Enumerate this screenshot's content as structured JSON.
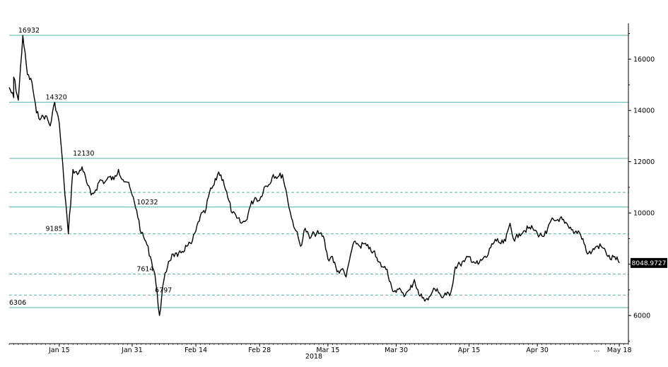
{
  "chart_data": {
    "type": "line",
    "year_label": "2018",
    "x_tick_labels": [
      "Jan 15",
      "Jan 31",
      "Feb 14",
      "Feb 28",
      "Mar 15",
      "Mar 30",
      "Apr 15",
      "Apr 30",
      "May 18"
    ],
    "x_tick_dates": [
      "2018-01-15",
      "2018-01-31",
      "2018-02-14",
      "2018-02-28",
      "2018-03-15",
      "2018-03-30",
      "2018-04-15",
      "2018-04-30",
      "2018-05-18"
    ],
    "x_ellipsis": "...",
    "y_ticks": [
      6000,
      8000,
      10000,
      12000,
      14000,
      16000
    ],
    "y_tick_labels": [
      "6000",
      "8000",
      "10000",
      "12000",
      "14000",
      "16000"
    ],
    "ylim": [
      4900,
      17400
    ],
    "xlim": [
      "2018-01-04",
      "2018-05-20"
    ],
    "last_value_label": "8048.9727",
    "colors": {
      "line": "#000000",
      "levels": "#4fb3a6",
      "axis": "#000000"
    },
    "solid_levels": [
      16932,
      14320,
      12130,
      10232,
      6306
    ],
    "dashed_levels": [
      10800,
      9185,
      7614,
      6797
    ],
    "level_labels": [
      {
        "text": "16932",
        "date": "2018-01-06",
        "value": 16932,
        "anchor": "start"
      },
      {
        "text": "14320",
        "date": "2018-01-12",
        "value": 14320,
        "anchor": "start"
      },
      {
        "text": "12130",
        "date": "2018-01-18",
        "value": 12130,
        "anchor": "start"
      },
      {
        "text": "10232",
        "date": "2018-02-01",
        "value": 10232,
        "anchor": "start"
      },
      {
        "text": "9185",
        "date": "2018-01-12",
        "value": 9185,
        "anchor": "start"
      },
      {
        "text": "7614",
        "date": "2018-02-01",
        "value": 7614,
        "anchor": "start"
      },
      {
        "text": "6797",
        "date": "2018-02-05",
        "value": 6797,
        "anchor": "start"
      },
      {
        "text": "6306",
        "date": "2018-01-04",
        "value": 6306,
        "anchor": "start"
      }
    ],
    "series": [
      {
        "points": [
          [
            "2018-01-04",
            14900
          ],
          [
            "2018-01-05",
            14500
          ],
          [
            "2018-01-05",
            15300
          ],
          [
            "2018-01-06",
            14400
          ],
          [
            "2018-01-07",
            16932
          ],
          [
            "2018-01-08",
            15400
          ],
          [
            "2018-01-09",
            15100
          ],
          [
            "2018-01-10",
            13900
          ],
          [
            "2018-01-11",
            13700
          ],
          [
            "2018-01-12",
            13800
          ],
          [
            "2018-01-13",
            13400
          ],
          [
            "2018-01-14",
            14320
          ],
          [
            "2018-01-15",
            13500
          ],
          [
            "2018-01-16",
            11300
          ],
          [
            "2018-01-17",
            9185
          ],
          [
            "2018-01-18",
            11700
          ],
          [
            "2018-01-19",
            11500
          ],
          [
            "2018-01-20",
            11800
          ],
          [
            "2018-01-21",
            11200
          ],
          [
            "2018-01-22",
            10700
          ],
          [
            "2018-01-23",
            10900
          ],
          [
            "2018-01-24",
            11300
          ],
          [
            "2018-01-25",
            11200
          ],
          [
            "2018-01-26",
            11400
          ],
          [
            "2018-01-27",
            11300
          ],
          [
            "2018-01-28",
            11700
          ],
          [
            "2018-01-29",
            11300
          ],
          [
            "2018-01-30",
            11200
          ],
          [
            "2018-01-31",
            10700
          ],
          [
            "2018-02-01",
            10100
          ],
          [
            "2018-02-02",
            9200
          ],
          [
            "2018-02-03",
            8900
          ],
          [
            "2018-02-04",
            8300
          ],
          [
            "2018-02-05",
            7614
          ],
          [
            "2018-02-06",
            6000
          ],
          [
            "2018-02-07",
            7400
          ],
          [
            "2018-02-08",
            8100
          ],
          [
            "2018-02-09",
            8400
          ],
          [
            "2018-02-10",
            8300
          ],
          [
            "2018-02-11",
            8500
          ],
          [
            "2018-02-12",
            8700
          ],
          [
            "2018-02-13",
            8800
          ],
          [
            "2018-02-14",
            9300
          ],
          [
            "2018-02-15",
            9900
          ],
          [
            "2018-02-16",
            10000
          ],
          [
            "2018-02-17",
            10800
          ],
          [
            "2018-02-18",
            11100
          ],
          [
            "2018-02-19",
            11600
          ],
          [
            "2018-02-20",
            11300
          ],
          [
            "2018-02-21",
            10600
          ],
          [
            "2018-02-22",
            10000
          ],
          [
            "2018-02-23",
            9800
          ],
          [
            "2018-02-24",
            9600
          ],
          [
            "2018-02-25",
            9700
          ],
          [
            "2018-02-26",
            10300
          ],
          [
            "2018-02-27",
            10600
          ],
          [
            "2018-02-28",
            10500
          ],
          [
            "2018-03-01",
            11000
          ],
          [
            "2018-03-02",
            11100
          ],
          [
            "2018-03-03",
            11500
          ],
          [
            "2018-03-04",
            11400
          ],
          [
            "2018-03-05",
            11500
          ],
          [
            "2018-03-06",
            10700
          ],
          [
            "2018-03-07",
            9800
          ],
          [
            "2018-03-08",
            9300
          ],
          [
            "2018-03-09",
            8700
          ],
          [
            "2018-03-10",
            9400
          ],
          [
            "2018-03-11",
            9000
          ],
          [
            "2018-03-12",
            9200
          ],
          [
            "2018-03-13",
            9200
          ],
          [
            "2018-03-14",
            9100
          ],
          [
            "2018-03-15",
            8200
          ],
          [
            "2018-03-16",
            8300
          ],
          [
            "2018-03-17",
            7700
          ],
          [
            "2018-03-18",
            7800
          ],
          [
            "2018-03-19",
            7500
          ],
          [
            "2018-03-20",
            8400
          ],
          [
            "2018-03-21",
            8900
          ],
          [
            "2018-03-22",
            8700
          ],
          [
            "2018-03-23",
            8800
          ],
          [
            "2018-03-24",
            8600
          ],
          [
            "2018-03-25",
            8500
          ],
          [
            "2018-03-26",
            8100
          ],
          [
            "2018-03-27",
            7900
          ],
          [
            "2018-03-28",
            7800
          ],
          [
            "2018-03-29",
            7100
          ],
          [
            "2018-03-30",
            6900
          ],
          [
            "2018-03-31",
            7000
          ],
          [
            "2018-04-01",
            6800
          ],
          [
            "2018-04-02",
            7000
          ],
          [
            "2018-04-03",
            7400
          ],
          [
            "2018-04-04",
            6800
          ],
          [
            "2018-04-05",
            6700
          ],
          [
            "2018-04-06",
            6600
          ],
          [
            "2018-04-07",
            6950
          ],
          [
            "2018-04-08",
            7050
          ],
          [
            "2018-04-09",
            6700
          ],
          [
            "2018-04-10",
            6800
          ],
          [
            "2018-04-11",
            6900
          ],
          [
            "2018-04-12",
            7900
          ],
          [
            "2018-04-13",
            8000
          ],
          [
            "2018-04-14",
            8100
          ],
          [
            "2018-04-15",
            8300
          ],
          [
            "2018-04-16",
            8100
          ],
          [
            "2018-04-17",
            8000
          ],
          [
            "2018-04-18",
            8200
          ],
          [
            "2018-04-19",
            8300
          ],
          [
            "2018-04-20",
            8800
          ],
          [
            "2018-04-21",
            8900
          ],
          [
            "2018-04-22",
            8800
          ],
          [
            "2018-04-23",
            8900
          ],
          [
            "2018-04-24",
            9600
          ],
          [
            "2018-04-25",
            8900
          ],
          [
            "2018-04-26",
            9200
          ],
          [
            "2018-04-27",
            9300
          ],
          [
            "2018-04-28",
            9400
          ],
          [
            "2018-04-29",
            9400
          ],
          [
            "2018-04-30",
            9200
          ],
          [
            "2018-05-01",
            9100
          ],
          [
            "2018-05-02",
            9200
          ],
          [
            "2018-05-03",
            9700
          ],
          [
            "2018-05-04",
            9700
          ],
          [
            "2018-05-05",
            9800
          ],
          [
            "2018-05-06",
            9600
          ],
          [
            "2018-05-07",
            9400
          ],
          [
            "2018-05-08",
            9200
          ],
          [
            "2018-05-09",
            9300
          ],
          [
            "2018-05-10",
            9000
          ],
          [
            "2018-05-11",
            8400
          ],
          [
            "2018-05-12",
            8500
          ],
          [
            "2018-05-13",
            8700
          ],
          [
            "2018-05-14",
            8700
          ],
          [
            "2018-05-15",
            8500
          ],
          [
            "2018-05-16",
            8200
          ],
          [
            "2018-05-17",
            8300
          ],
          [
            "2018-05-18",
            8049
          ]
        ]
      }
    ]
  }
}
